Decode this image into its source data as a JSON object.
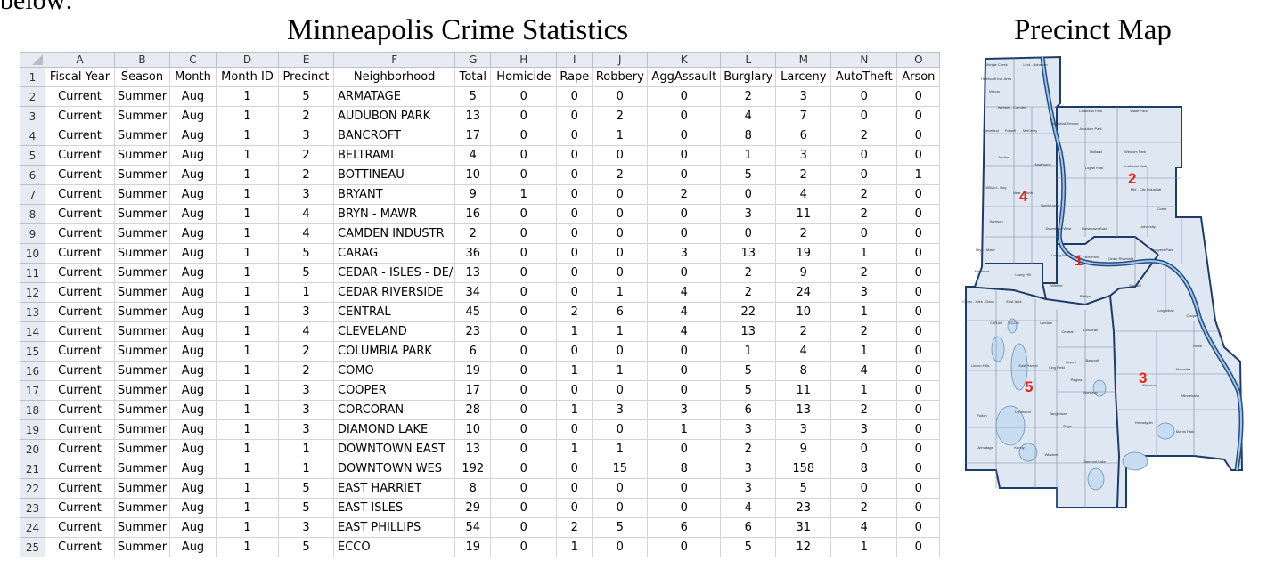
{
  "intro_text": "below:",
  "sheet_title": "Minneapolis Crime Statistics",
  "map_title": "Precinct Map",
  "column_letters": [
    "A",
    "B",
    "C",
    "D",
    "E",
    "F",
    "G",
    "H",
    "I",
    "J",
    "K",
    "L",
    "M",
    "N",
    "O"
  ],
  "headers": [
    "Fiscal Year",
    "Season",
    "Month",
    "Month ID",
    "Precinct",
    "Neighborhood",
    "Total",
    "Homicide",
    "Rape",
    "Robbery",
    "AggAssault",
    "Burglary",
    "Larceny",
    "AutoTheft",
    "Arson"
  ],
  "rows": [
    [
      "Current",
      "Summer",
      "Aug",
      "1",
      "5",
      "ARMATAGE",
      "5",
      "0",
      "0",
      "0",
      "0",
      "2",
      "3",
      "0",
      "0"
    ],
    [
      "Current",
      "Summer",
      "Aug",
      "1",
      "2",
      "AUDUBON PARK",
      "13",
      "0",
      "0",
      "2",
      "0",
      "4",
      "7",
      "0",
      "0"
    ],
    [
      "Current",
      "Summer",
      "Aug",
      "1",
      "3",
      "BANCROFT",
      "17",
      "0",
      "0",
      "1",
      "0",
      "8",
      "6",
      "2",
      "0"
    ],
    [
      "Current",
      "Summer",
      "Aug",
      "1",
      "2",
      "BELTRAMI",
      "4",
      "0",
      "0",
      "0",
      "0",
      "1",
      "3",
      "0",
      "0"
    ],
    [
      "Current",
      "Summer",
      "Aug",
      "1",
      "2",
      "BOTTINEAU",
      "10",
      "0",
      "0",
      "2",
      "0",
      "5",
      "2",
      "0",
      "1"
    ],
    [
      "Current",
      "Summer",
      "Aug",
      "1",
      "3",
      "BRYANT",
      "9",
      "1",
      "0",
      "0",
      "2",
      "0",
      "4",
      "2",
      "0"
    ],
    [
      "Current",
      "Summer",
      "Aug",
      "1",
      "4",
      "BRYN - MAWR",
      "16",
      "0",
      "0",
      "0",
      "0",
      "3",
      "11",
      "2",
      "0"
    ],
    [
      "Current",
      "Summer",
      "Aug",
      "1",
      "4",
      "CAMDEN INDUSTR",
      "2",
      "0",
      "0",
      "0",
      "0",
      "0",
      "2",
      "0",
      "0"
    ],
    [
      "Current",
      "Summer",
      "Aug",
      "1",
      "5",
      "CARAG",
      "36",
      "0",
      "0",
      "0",
      "3",
      "13",
      "19",
      "1",
      "0"
    ],
    [
      "Current",
      "Summer",
      "Aug",
      "1",
      "5",
      "CEDAR - ISLES - DE/",
      "13",
      "0",
      "0",
      "0",
      "0",
      "2",
      "9",
      "2",
      "0"
    ],
    [
      "Current",
      "Summer",
      "Aug",
      "1",
      "1",
      "CEDAR RIVERSIDE",
      "34",
      "0",
      "0",
      "1",
      "4",
      "2",
      "24",
      "3",
      "0"
    ],
    [
      "Current",
      "Summer",
      "Aug",
      "1",
      "3",
      "CENTRAL",
      "45",
      "0",
      "2",
      "6",
      "4",
      "22",
      "10",
      "1",
      "0"
    ],
    [
      "Current",
      "Summer",
      "Aug",
      "1",
      "4",
      "CLEVELAND",
      "23",
      "0",
      "1",
      "1",
      "4",
      "13",
      "2",
      "2",
      "0"
    ],
    [
      "Current",
      "Summer",
      "Aug",
      "1",
      "2",
      "COLUMBIA PARK",
      "6",
      "0",
      "0",
      "0",
      "0",
      "1",
      "4",
      "1",
      "0"
    ],
    [
      "Current",
      "Summer",
      "Aug",
      "1",
      "2",
      "COMO",
      "19",
      "0",
      "1",
      "1",
      "0",
      "5",
      "8",
      "4",
      "0"
    ],
    [
      "Current",
      "Summer",
      "Aug",
      "1",
      "3",
      "COOPER",
      "17",
      "0",
      "0",
      "0",
      "0",
      "5",
      "11",
      "1",
      "0"
    ],
    [
      "Current",
      "Summer",
      "Aug",
      "1",
      "3",
      "CORCORAN",
      "28",
      "0",
      "1",
      "3",
      "3",
      "6",
      "13",
      "2",
      "0"
    ],
    [
      "Current",
      "Summer",
      "Aug",
      "1",
      "3",
      "DIAMOND LAKE",
      "10",
      "0",
      "0",
      "0",
      "1",
      "3",
      "3",
      "3",
      "0"
    ],
    [
      "Current",
      "Summer",
      "Aug",
      "1",
      "1",
      "DOWNTOWN EAST",
      "13",
      "0",
      "1",
      "1",
      "0",
      "2",
      "9",
      "0",
      "0"
    ],
    [
      "Current",
      "Summer",
      "Aug",
      "1",
      "1",
      "DOWNTOWN WES",
      "192",
      "0",
      "0",
      "15",
      "8",
      "3",
      "158",
      "8",
      "0"
    ],
    [
      "Current",
      "Summer",
      "Aug",
      "1",
      "5",
      "EAST HARRIET",
      "8",
      "0",
      "0",
      "0",
      "0",
      "3",
      "5",
      "0",
      "0"
    ],
    [
      "Current",
      "Summer",
      "Aug",
      "1",
      "5",
      "EAST ISLES",
      "29",
      "0",
      "0",
      "0",
      "0",
      "4",
      "23",
      "2",
      "0"
    ],
    [
      "Current",
      "Summer",
      "Aug",
      "1",
      "3",
      "EAST PHILLIPS",
      "54",
      "0",
      "2",
      "5",
      "6",
      "6",
      "31",
      "4",
      "0"
    ],
    [
      "Current",
      "Summer",
      "Aug",
      "1",
      "5",
      "ECCO",
      "19",
      "0",
      "1",
      "0",
      "0",
      "5",
      "12",
      "1",
      "0"
    ]
  ],
  "map": {
    "precinct_numbers": [
      "1",
      "2",
      "3",
      "4",
      "5"
    ],
    "neighborhood_labels": [
      "Shingle Creek",
      "Lind - Bohanon",
      "Humboldt Ind. Area",
      "Victory",
      "Webber - Camden",
      "Columbia Park",
      "Waite Park",
      "Cleveland",
      "Folwell",
      "McKinley",
      "Marshall Terrace",
      "Audubon Park",
      "Holland",
      "Windom Park",
      "Jordan",
      "Hawthorne",
      "Logan Park",
      "Northeast Park",
      "Willard - Hay",
      "Near - North",
      "Mid - City Industrial",
      "North Loop",
      "Como",
      "Harrison",
      "Downtown West",
      "Downtown East",
      "University",
      "Bryn - Mawr",
      "Loring Park",
      "Elliot Park",
      "Cedar Riverside",
      "Prospect Park",
      "Kenwood",
      "Lowry Hill",
      "Whittier",
      "Seward",
      "Cedar - Isles - Dean",
      "East Isles",
      "Phillips",
      "Longfellow",
      "Cooper",
      "CARAG",
      "ECCO",
      "Lyndale",
      "Central",
      "Corcoran",
      "Howe",
      "Linden Hills",
      "East Harriet",
      "King Field",
      "Bryant",
      "Bancroft",
      "Hiawatha",
      "Fulton",
      "Lynnhurst",
      "Tangletown",
      "Regina",
      "Northrop",
      "Ericsson",
      "Minnehaha",
      "Armatage",
      "Kenny",
      "Windom",
      "Diamond Lake",
      "Page",
      "Keewaydin",
      "Morris Park"
    ]
  }
}
